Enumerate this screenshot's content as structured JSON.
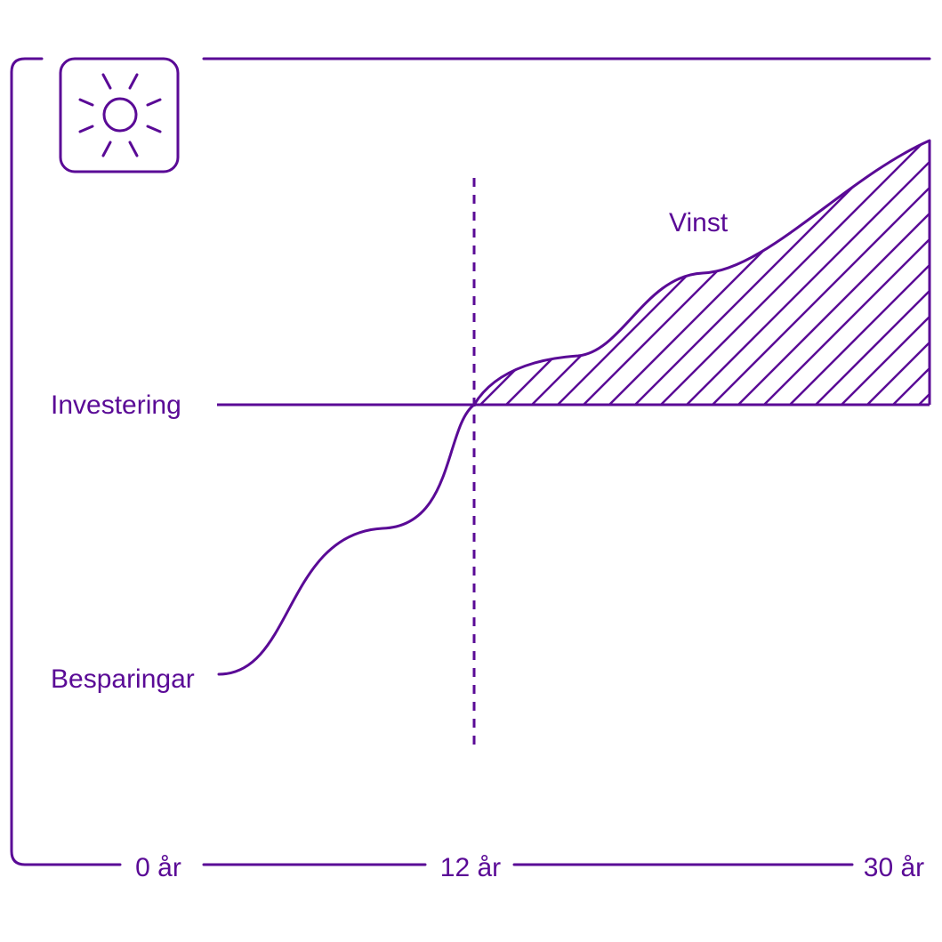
{
  "colors": {
    "accent": "#5a0a96",
    "background": "#ffffff"
  },
  "icon": "sun-icon",
  "labels": {
    "investment": "Investering",
    "savings": "Besparingar",
    "profit": "Vinst"
  },
  "timeline": {
    "start": "0 år",
    "breakeven": "12 år",
    "end": "30 år"
  }
}
